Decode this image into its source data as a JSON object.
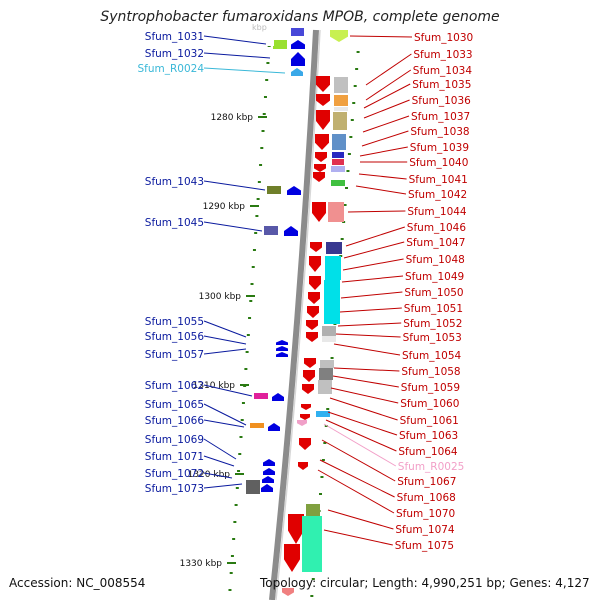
{
  "header": {
    "title": "Syntrophobacter fumaroxidans MPOB, complete genome"
  },
  "footer": {
    "accession": "Accession: NC_008554",
    "topology": "Topology: circular; Length: 4,990,251 bp; Genes: 4,127"
  },
  "scale": {
    "unit": "kbp",
    "ticks": [
      {
        "label": "1280 kbp",
        "value": 1280
      },
      {
        "label": "1290 kbp",
        "value": 1290
      },
      {
        "label": "1300 kbp",
        "value": 1300
      },
      {
        "label": "1310 kbp",
        "value": 1310
      },
      {
        "label": "1320 kbp",
        "value": 1320
      },
      {
        "label": "1330 kbp",
        "value": 1330
      }
    ]
  },
  "left_genes": [
    {
      "name": "Sfum_1031",
      "type": "cds"
    },
    {
      "name": "Sfum_1032",
      "type": "cds"
    },
    {
      "name": "Sfum_R0024",
      "type": "rna"
    },
    {
      "name": "Sfum_1043",
      "type": "cds"
    },
    {
      "name": "Sfum_1045",
      "type": "cds"
    },
    {
      "name": "Sfum_1055",
      "type": "cds"
    },
    {
      "name": "Sfum_1056",
      "type": "cds"
    },
    {
      "name": "Sfum_1057",
      "type": "cds"
    },
    {
      "name": "Sfum_1062",
      "type": "cds"
    },
    {
      "name": "Sfum_1065",
      "type": "cds"
    },
    {
      "name": "Sfum_1066",
      "type": "cds"
    },
    {
      "name": "Sfum_1069",
      "type": "cds"
    },
    {
      "name": "Sfum_1071",
      "type": "cds"
    },
    {
      "name": "Sfum_1072",
      "type": "cds"
    },
    {
      "name": "Sfum_1073",
      "type": "cds"
    }
  ],
  "right_genes": [
    {
      "name": "Sfum_1030",
      "type": "cds"
    },
    {
      "name": "Sfum_1033",
      "type": "cds"
    },
    {
      "name": "Sfum_1034",
      "type": "cds"
    },
    {
      "name": "Sfum_1035",
      "type": "cds"
    },
    {
      "name": "Sfum_1036",
      "type": "cds"
    },
    {
      "name": "Sfum_1037",
      "type": "cds"
    },
    {
      "name": "Sfum_1038",
      "type": "cds"
    },
    {
      "name": "Sfum_1039",
      "type": "cds"
    },
    {
      "name": "Sfum_1040",
      "type": "cds"
    },
    {
      "name": "Sfum_1041",
      "type": "cds"
    },
    {
      "name": "Sfum_1042",
      "type": "cds"
    },
    {
      "name": "Sfum_1044",
      "type": "cds"
    },
    {
      "name": "Sfum_1046",
      "type": "cds"
    },
    {
      "name": "Sfum_1047",
      "type": "cds"
    },
    {
      "name": "Sfum_1048",
      "type": "cds"
    },
    {
      "name": "Sfum_1049",
      "type": "cds"
    },
    {
      "name": "Sfum_1050",
      "type": "cds"
    },
    {
      "name": "Sfum_1051",
      "type": "cds"
    },
    {
      "name": "Sfum_1052",
      "type": "cds"
    },
    {
      "name": "Sfum_1053",
      "type": "cds"
    },
    {
      "name": "Sfum_1054",
      "type": "cds"
    },
    {
      "name": "Sfum_1058",
      "type": "cds"
    },
    {
      "name": "Sfum_1059",
      "type": "cds"
    },
    {
      "name": "Sfum_1060",
      "type": "cds"
    },
    {
      "name": "Sfum_1061",
      "type": "cds"
    },
    {
      "name": "Sfum_1063",
      "type": "cds"
    },
    {
      "name": "Sfum_1064",
      "type": "cds"
    },
    {
      "name": "Sfum_R0025",
      "type": "rna"
    },
    {
      "name": "Sfum_1067",
      "type": "cds"
    },
    {
      "name": "Sfum_1068",
      "type": "cds"
    },
    {
      "name": "Sfum_1070",
      "type": "cds"
    },
    {
      "name": "Sfum_1074",
      "type": "cds"
    },
    {
      "name": "Sfum_1075",
      "type": "cds"
    }
  ],
  "colors": {
    "forward_strand": "#e00000",
    "reverse_strand": "#0000e0",
    "left_label": "#0a1a9e",
    "right_label": "#c00000",
    "trna_left": "#3ab8d8",
    "trna_right": "#f2a0c8",
    "backbone": "#8c8c8c",
    "tick": "#2a7a12"
  }
}
